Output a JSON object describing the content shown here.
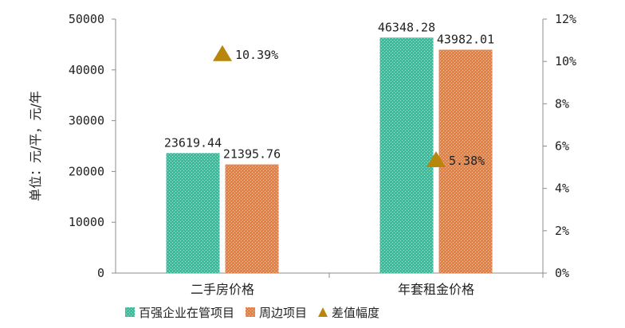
{
  "chart_data": {
    "type": "bar",
    "categories": [
      "二手房价格",
      "年套租金价格"
    ],
    "series": [
      {
        "name": "百强企业在管项目",
        "values": [
          23619.44,
          46348.28
        ],
        "labels": [
          "23619.44",
          "46348.28"
        ],
        "color": "#2ec4a0",
        "axis": "left"
      },
      {
        "name": "周边项目",
        "values": [
          21395.76,
          43982.01
        ],
        "labels": [
          "21395.76",
          "43982.01"
        ],
        "color": "#f07f3c",
        "axis": "left"
      },
      {
        "name": "差值幅度",
        "values": [
          10.39,
          5.38
        ],
        "labels": [
          "10.39%",
          "5.38%"
        ],
        "color": "#b8860b",
        "axis": "right",
        "marker": "triangle"
      }
    ],
    "ylabel": "单位：元/平，元/年",
    "ylim": [
      0,
      50000
    ],
    "yticks": [
      "0",
      "10000",
      "20000",
      "30000",
      "40000",
      "50000"
    ],
    "y2lim": [
      0,
      12
    ],
    "y2ticks": [
      "0%",
      "2%",
      "4%",
      "6%",
      "8%",
      "10%",
      "12%"
    ],
    "legend_position": "bottom",
    "grid": false
  }
}
